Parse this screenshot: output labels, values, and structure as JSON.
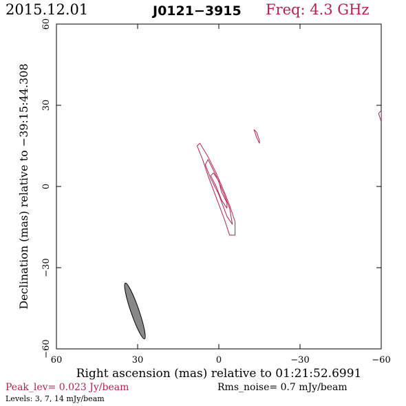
{
  "header": {
    "date": "2015.12.01",
    "source": "J0121−3915",
    "frequency": "Freq: 4.3 GHz"
  },
  "footer": {
    "peak": "Peak_lev=  0.023 Jy/beam",
    "rms": "Rms_noise=  0.7 mJy/beam",
    "levels": "Levels:   3,   7,  14 mJy/beam"
  },
  "colors": {
    "contour": "#b0234f",
    "beam": "#888888",
    "frame": "#000000"
  },
  "chart_data": {
    "type": "contour",
    "xlabel": "Right ascension (mas) relative to 01:21:52.6991",
    "ylabel": "Declination (mas) relative to −39:15:44.308",
    "xlim": [
      60,
      -60
    ],
    "ylim": [
      -60,
      60
    ],
    "x_ticks": [
      60,
      30,
      0,
      -30,
      -60
    ],
    "y_ticks": [
      -60,
      -30,
      0,
      30,
      60
    ],
    "x_tick_labels": [
      "60",
      "30",
      "0",
      "−30",
      "−60"
    ],
    "y_tick_labels": [
      "−60",
      "−30",
      "0",
      "30",
      "60"
    ],
    "contour_levels_mJy": [
      3,
      7,
      14
    ],
    "contours": [
      {
        "level": 3,
        "points": [
          [
            7,
            16
          ],
          [
            8,
            15
          ],
          [
            6,
            10
          ],
          [
            4,
            4
          ],
          [
            1,
            -4
          ],
          [
            -2,
            -12
          ],
          [
            -4,
            -18
          ],
          [
            -6,
            -18
          ],
          [
            -6,
            -13
          ],
          [
            -4,
            -7
          ],
          [
            -2,
            -2
          ],
          [
            1,
            5
          ],
          [
            4,
            11
          ],
          [
            7,
            16
          ]
        ]
      },
      {
        "level": 7,
        "points": [
          [
            4,
            10
          ],
          [
            5,
            8
          ],
          [
            3,
            3
          ],
          [
            0,
            -3
          ],
          [
            -3,
            -11
          ],
          [
            -5,
            -14
          ],
          [
            -4,
            -8
          ],
          [
            -2,
            -3
          ],
          [
            1,
            4
          ],
          [
            4,
            10
          ]
        ]
      },
      {
        "level": 14,
        "points": [
          [
            2,
            5
          ],
          [
            3,
            4
          ],
          [
            1,
            0
          ],
          [
            -1,
            -5
          ],
          [
            -3,
            -8
          ],
          [
            -3,
            -6
          ],
          [
            -1,
            -2
          ],
          [
            0,
            2
          ],
          [
            2,
            5
          ]
        ]
      },
      {
        "level": 3,
        "points": [
          [
            -13,
            21
          ],
          [
            -14,
            20
          ],
          [
            -15,
            17
          ],
          [
            -15,
            16
          ],
          [
            -14,
            18
          ],
          [
            -13,
            21
          ]
        ]
      },
      {
        "level": 3,
        "points": [
          [
            -59,
            27
          ],
          [
            -60,
            28
          ],
          [
            -60,
            24
          ],
          [
            -59,
            27
          ]
        ]
      }
    ],
    "beam": {
      "center": [
        31,
        -46
      ],
      "major_mas": 21.8,
      "minor_mas": 3.0,
      "pa_deg": 19
    }
  }
}
